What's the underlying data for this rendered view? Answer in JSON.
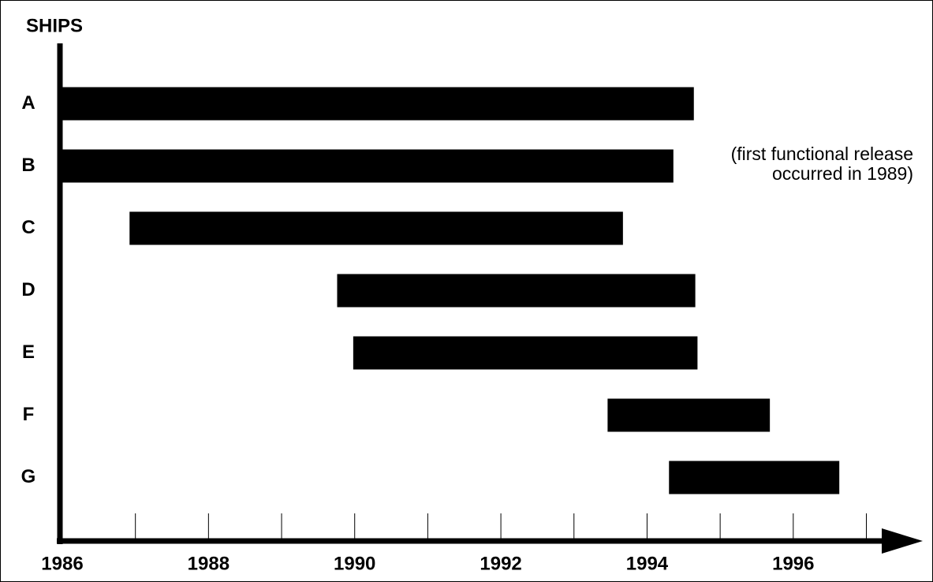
{
  "chart_data": {
    "type": "timeline",
    "y_label": "SHIPS",
    "categories": [
      "A",
      "B",
      "C",
      "D",
      "E",
      "F",
      "G"
    ],
    "starts": [
      1986,
      1986,
      1986.92,
      1989.76,
      1989.98,
      1993.46,
      1994.3
    ],
    "ends": [
      1994.64,
      1994.36,
      1993.67,
      1994.66,
      1994.69,
      1995.68,
      1996.63
    ],
    "color": "#000000",
    "xlim": [
      1986,
      1997.75
    ],
    "xticks": [
      1986,
      1988,
      1990,
      1992,
      1994,
      1996
    ],
    "xminor_ticks": [
      1987,
      1988,
      1989,
      1990,
      1991,
      1992,
      1993,
      1994,
      1995,
      1996,
      1997
    ],
    "annotation": [
      "(first functional release",
      "occurred in 1989)"
    ]
  }
}
